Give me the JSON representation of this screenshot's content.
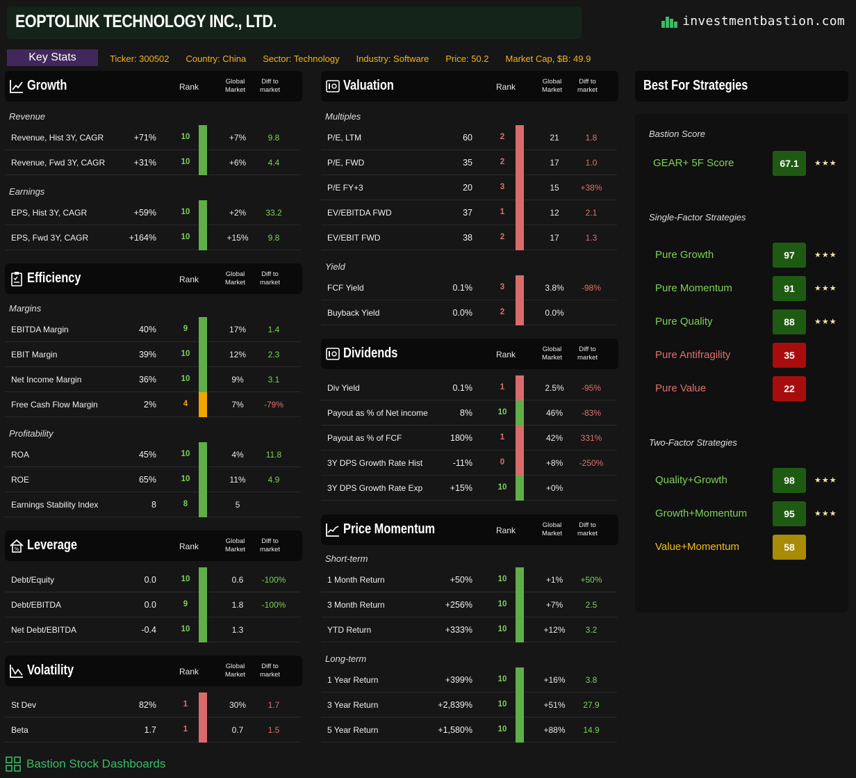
{
  "header": {
    "title": "EOPTOLINK TECHNOLOGY INC., LTD.",
    "brand": "investmentbastion.com",
    "brand_icon": "city-skyline-icon"
  },
  "key_stats": {
    "label": "Key Stats",
    "ticker": "Ticker: 300502",
    "country": "Country: China",
    "sector": "Sector: Technology",
    "industry": "Industry: Software",
    "price": "Price: 50.2",
    "market_cap": "Market Cap, $B: 49.9"
  },
  "columns": {
    "rank": "Rank",
    "global_line1": "Global",
    "global_line2": "Market",
    "diff_line1": "Diff to",
    "diff_line2": "market"
  },
  "colors": {
    "green": "#5fae48",
    "red": "#d96b6b",
    "orange": "#f0a500",
    "text_green": "#7ed158",
    "text_red": "#e07070",
    "text_orange": "#f0a500"
  },
  "growth": {
    "title": "Growth",
    "sections": [
      {
        "label": "Revenue",
        "rows": [
          {
            "label": "Revenue, Hist 3Y, CAGR",
            "value": "+71%",
            "rank": "10",
            "global": "+7%",
            "diff": "9.8",
            "color": "green"
          },
          {
            "label": "Revenue, Fwd 3Y, CAGR",
            "value": "+31%",
            "rank": "10",
            "global": "+6%",
            "diff": "4.4",
            "color": "green"
          }
        ]
      },
      {
        "label": "Earnings",
        "rows": [
          {
            "label": "EPS, Hist 3Y, CAGR",
            "value": "+59%",
            "rank": "10",
            "global": "+2%",
            "diff": "33.2",
            "color": "green"
          },
          {
            "label": "EPS, Fwd 3Y, CAGR",
            "value": "+164%",
            "rank": "10",
            "global": "+15%",
            "diff": "9.8",
            "color": "green"
          }
        ]
      }
    ]
  },
  "efficiency": {
    "title": "Efficiency",
    "sections": [
      {
        "label": "Margins",
        "rows": [
          {
            "label": "EBITDA Margin",
            "value": "40%",
            "rank": "9",
            "global": "17%",
            "diff": "1.4",
            "color": "green"
          },
          {
            "label": "EBIT Margin",
            "value": "39%",
            "rank": "10",
            "global": "12%",
            "diff": "2.3",
            "color": "green"
          },
          {
            "label": "Net Income Margin",
            "value": "36%",
            "rank": "10",
            "global": "9%",
            "diff": "3.1",
            "color": "green"
          },
          {
            "label": "Free Cash Flow Margin",
            "value": "2%",
            "rank": "4",
            "global": "7%",
            "diff": "-79%",
            "color": "orange",
            "diff_color": "red"
          }
        ]
      },
      {
        "label": "Profitability",
        "rows": [
          {
            "label": "ROA",
            "value": "45%",
            "rank": "10",
            "global": "4%",
            "diff": "11.8",
            "color": "green"
          },
          {
            "label": "ROE",
            "value": "65%",
            "rank": "10",
            "global": "11%",
            "diff": "4.9",
            "color": "green"
          },
          {
            "label": "Earnings Stability Index",
            "value": "8",
            "rank": "8",
            "global": "5",
            "diff": "",
            "color": "green"
          }
        ]
      }
    ]
  },
  "leverage": {
    "title": "Leverage",
    "rows": [
      {
        "label": "Debt/Equity",
        "value": "0.0",
        "rank": "10",
        "global": "0.6",
        "diff": "-100%",
        "color": "green"
      },
      {
        "label": "Debt/EBITDA",
        "value": "0.0",
        "rank": "9",
        "global": "1.8",
        "diff": "-100%",
        "color": "green"
      },
      {
        "label": "Net Debt/EBITDA",
        "value": "-0.4",
        "rank": "10",
        "global": "1.3",
        "diff": "",
        "color": "green"
      }
    ]
  },
  "volatility": {
    "title": "Volatility",
    "rows": [
      {
        "label": "St Dev",
        "value": "82%",
        "rank": "1",
        "global": "30%",
        "diff": "1.7",
        "color": "red"
      },
      {
        "label": "Beta",
        "value": "1.7",
        "rank": "1",
        "global": "0.7",
        "diff": "1.5",
        "color": "red"
      }
    ]
  },
  "valuation": {
    "title": "Valuation",
    "sections": [
      {
        "label": "Multiples",
        "rows": [
          {
            "label": "P/E, LTM",
            "value": "60",
            "rank": "2",
            "global": "21",
            "diff": "1.8",
            "color": "red"
          },
          {
            "label": "P/E, FWD",
            "value": "35",
            "rank": "2",
            "global": "17",
            "diff": "1.0",
            "color": "red"
          },
          {
            "label": "P/E FY+3",
            "value": "20",
            "rank": "3",
            "global": "15",
            "diff": "+38%",
            "color": "red"
          },
          {
            "label": "EV/EBITDA FWD",
            "value": "37",
            "rank": "1",
            "global": "12",
            "diff": "2.1",
            "color": "red"
          },
          {
            "label": "EV/EBIT FWD",
            "value": "38",
            "rank": "2",
            "global": "17",
            "diff": "1.3",
            "color": "red"
          }
        ]
      },
      {
        "label": "Yield",
        "rows": [
          {
            "label": "FCF Yield",
            "value": "0.1%",
            "rank": "3",
            "global": "3.8%",
            "diff": "-98%",
            "color": "red"
          },
          {
            "label": "Buyback Yield",
            "value": "0.0%",
            "rank": "2",
            "global": "0.0%",
            "diff": "",
            "color": "red"
          }
        ]
      }
    ]
  },
  "dividends": {
    "title": "Dividends",
    "rows": [
      {
        "label": "Div Yield",
        "value": "0.1%",
        "rank": "1",
        "global": "2.5%",
        "diff": "-95%",
        "color": "red"
      },
      {
        "label": "Payout as % of Net income",
        "value": "8%",
        "rank": "10",
        "global": "46%",
        "diff": "-83%",
        "color": "green",
        "diff_color": "red"
      },
      {
        "label": "Payout as % of FCF",
        "value": "180%",
        "rank": "1",
        "global": "42%",
        "diff": "331%",
        "color": "red"
      },
      {
        "label": "3Y DPS Growth Rate Hist",
        "value": "-11%",
        "rank": "0",
        "global": "+8%",
        "diff": "-250%",
        "color": "red"
      },
      {
        "label": "3Y DPS Growth Rate Exp",
        "value": "+15%",
        "rank": "10",
        "global": "+0%",
        "diff": "",
        "color": "green"
      }
    ]
  },
  "momentum": {
    "title": "Price Momentum",
    "sections": [
      {
        "label": "Short-term",
        "rows": [
          {
            "label": "1 Month Return",
            "value": "+50%",
            "rank": "10",
            "global": "+1%",
            "diff": "+50%",
            "color": "green"
          },
          {
            "label": "3 Month Return",
            "value": "+256%",
            "rank": "10",
            "global": "+7%",
            "diff": "2.5",
            "color": "green"
          },
          {
            "label": "YTD Return",
            "value": "+333%",
            "rank": "10",
            "global": "+12%",
            "diff": "3.2",
            "color": "green"
          }
        ]
      },
      {
        "label": "Long-term",
        "rows": [
          {
            "label": "1 Year Return",
            "value": "+399%",
            "rank": "10",
            "global": "+16%",
            "diff": "3.8",
            "color": "green"
          },
          {
            "label": "3 Year Return",
            "value": "+2,839%",
            "rank": "10",
            "global": "+51%",
            "diff": "27.9",
            "color": "green"
          },
          {
            "label": "5 Year Return",
            "value": "+1,580%",
            "rank": "10",
            "global": "+88%",
            "diff": "14.9",
            "color": "green"
          }
        ]
      }
    ]
  },
  "strategies": {
    "title": "Best For Strategies",
    "bastion_label": "Bastion Score",
    "gear": {
      "name": "GEAR+ 5F Score",
      "score": "67.1",
      "stars": "★★★",
      "color": "green"
    },
    "single_label": "Single-Factor Strategies",
    "single": [
      {
        "name": "Pure Growth",
        "score": "97",
        "stars": "★★★",
        "color": "green"
      },
      {
        "name": "Pure Momentum",
        "score": "91",
        "stars": "★★★",
        "color": "green"
      },
      {
        "name": "Pure Quality",
        "score": "88",
        "stars": "★★★",
        "color": "green"
      },
      {
        "name": "Pure Antifragility",
        "score": "35",
        "stars": "",
        "color": "red"
      },
      {
        "name": "Pure Value",
        "score": "22",
        "stars": "",
        "color": "red"
      }
    ],
    "two_label": "Two-Factor Strategies",
    "two": [
      {
        "name": "Quality+Growth",
        "score": "98",
        "stars": "★★★",
        "color": "green"
      },
      {
        "name": "Growth+Momentum",
        "score": "95",
        "stars": "★★★",
        "color": "green"
      },
      {
        "name": "Value+Momentum",
        "score": "58",
        "stars": "",
        "color": "yellow"
      }
    ]
  },
  "footer": {
    "label": "Bastion Stock Dashboards",
    "icon": "dashboard-grid-icon"
  }
}
